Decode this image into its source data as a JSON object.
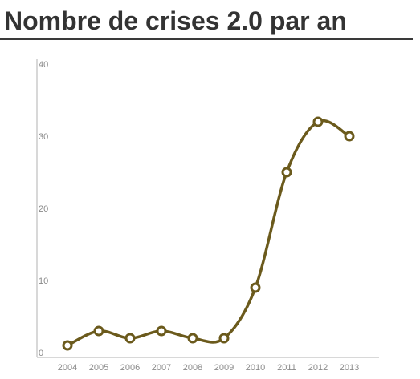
{
  "title": "Nombre de crises 2.0 par an",
  "colors": {
    "line": "#6b5a1c",
    "point_fill": "#ffffff",
    "axis": "#b0b0b0",
    "tick_text": "#8a8a8a",
    "title_text": "#333333"
  },
  "chart_data": {
    "type": "line",
    "title": "Nombre de crises 2.0 par an",
    "xlabel": "",
    "ylabel": "",
    "categories": [
      "2004",
      "2005",
      "2006",
      "2007",
      "2008",
      "2009",
      "2010",
      "2011",
      "2012",
      "2013"
    ],
    "values": [
      1,
      3,
      2,
      3,
      2,
      2,
      9,
      25,
      32,
      30
    ],
    "ylim": [
      0,
      40
    ],
    "yticks": [
      "0",
      "10",
      "20",
      "30",
      "40"
    ],
    "grid": false,
    "smooth": true
  }
}
